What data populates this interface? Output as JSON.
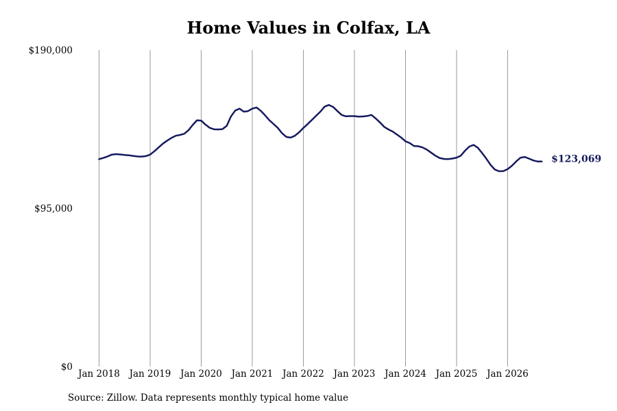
{
  "chart_data": {
    "type": "line",
    "title": "Home Values in Colfax, LA",
    "source_note": "Source: Zillow. Data represents monthly typical home value",
    "ylim": [
      0,
      190000
    ],
    "y_ticks": [
      {
        "value": 0,
        "label": "$0"
      },
      {
        "value": 95000,
        "label": "$95,000"
      },
      {
        "value": 190000,
        "label": "$190,000"
      }
    ],
    "x_ticks": [
      "Jan 2018",
      "Jan 2019",
      "Jan 2020",
      "Jan 2021",
      "Jan 2022",
      "Jan 2023",
      "Jan 2024",
      "Jan 2025",
      "Jan 2026"
    ],
    "grid": {
      "vertical": true,
      "horizontal": false
    },
    "line_color": "#151a5e",
    "end_label": "$123,069",
    "series": [
      {
        "points": [
          [
            "2018-01",
            124500
          ],
          [
            "2018-02",
            125200
          ],
          [
            "2018-03",
            126100
          ],
          [
            "2018-04",
            127200
          ],
          [
            "2018-05",
            127500
          ],
          [
            "2018-06",
            127300
          ],
          [
            "2018-07",
            127000
          ],
          [
            "2018-08",
            126800
          ],
          [
            "2018-09",
            126400
          ],
          [
            "2018-10",
            126100
          ],
          [
            "2018-11",
            126000
          ],
          [
            "2018-12",
            126300
          ],
          [
            "2019-01",
            127200
          ],
          [
            "2019-02",
            129200
          ],
          [
            "2019-03",
            131500
          ],
          [
            "2019-04",
            133800
          ],
          [
            "2019-05",
            135600
          ],
          [
            "2019-06",
            137200
          ],
          [
            "2019-07",
            138500
          ],
          [
            "2019-08",
            139000
          ],
          [
            "2019-09",
            139700
          ],
          [
            "2019-10",
            141800
          ],
          [
            "2019-11",
            145000
          ],
          [
            "2019-12",
            147800
          ],
          [
            "2020-01",
            147600
          ],
          [
            "2020-02",
            145200
          ],
          [
            "2020-03",
            143300
          ],
          [
            "2020-04",
            142400
          ],
          [
            "2020-05",
            142300
          ],
          [
            "2020-06",
            142500
          ],
          [
            "2020-07",
            144500
          ],
          [
            "2020-08",
            150200
          ],
          [
            "2020-09",
            153700
          ],
          [
            "2020-10",
            154800
          ],
          [
            "2020-11",
            153000
          ],
          [
            "2020-12",
            153300
          ],
          [
            "2021-01",
            154800
          ],
          [
            "2021-02",
            155500
          ],
          [
            "2021-03",
            153500
          ],
          [
            "2021-04",
            150800
          ],
          [
            "2021-05",
            147900
          ],
          [
            "2021-06",
            145600
          ],
          [
            "2021-07",
            143200
          ],
          [
            "2021-08",
            140000
          ],
          [
            "2021-09",
            137800
          ],
          [
            "2021-10",
            137400
          ],
          [
            "2021-11",
            138500
          ],
          [
            "2021-12",
            140600
          ],
          [
            "2022-01",
            143200
          ],
          [
            "2022-02",
            145500
          ],
          [
            "2022-03",
            148000
          ],
          [
            "2022-04",
            150500
          ],
          [
            "2022-05",
            153000
          ],
          [
            "2022-06",
            156000
          ],
          [
            "2022-07",
            157000
          ],
          [
            "2022-08",
            155800
          ],
          [
            "2022-09",
            153300
          ],
          [
            "2022-10",
            151000
          ],
          [
            "2022-11",
            150200
          ],
          [
            "2022-12",
            150300
          ],
          [
            "2023-01",
            150300
          ],
          [
            "2023-02",
            150000
          ],
          [
            "2023-03",
            150100
          ],
          [
            "2023-04",
            150400
          ],
          [
            "2023-05",
            151000
          ],
          [
            "2023-06",
            148900
          ],
          [
            "2023-07",
            146500
          ],
          [
            "2023-08",
            143800
          ],
          [
            "2023-09",
            142300
          ],
          [
            "2023-10",
            141000
          ],
          [
            "2023-11",
            139200
          ],
          [
            "2023-12",
            137400
          ],
          [
            "2024-01",
            135200
          ],
          [
            "2024-02",
            134100
          ],
          [
            "2024-03",
            132400
          ],
          [
            "2024-04",
            132200
          ],
          [
            "2024-05",
            131500
          ],
          [
            "2024-06",
            130200
          ],
          [
            "2024-07",
            128400
          ],
          [
            "2024-08",
            126600
          ],
          [
            "2024-09",
            125200
          ],
          [
            "2024-10",
            124600
          ],
          [
            "2024-11",
            124500
          ],
          [
            "2024-12",
            124800
          ],
          [
            "2025-01",
            125400
          ],
          [
            "2025-02",
            126600
          ],
          [
            "2025-03",
            129600
          ],
          [
            "2025-04",
            132000
          ],
          [
            "2025-05",
            133000
          ],
          [
            "2025-06",
            131300
          ],
          [
            "2025-07",
            128100
          ],
          [
            "2025-08",
            124700
          ],
          [
            "2025-09",
            121000
          ],
          [
            "2025-10",
            118200
          ],
          [
            "2025-11",
            117200
          ],
          [
            "2025-12",
            117300
          ],
          [
            "2026-01",
            118500
          ],
          [
            "2026-02",
            120500
          ],
          [
            "2026-03",
            123100
          ],
          [
            "2026-04",
            125300
          ],
          [
            "2026-05",
            125800
          ],
          [
            "2026-06",
            124800
          ],
          [
            "2026-07",
            123700
          ],
          [
            "2026-08",
            123100
          ],
          [
            "2026-09",
            123069
          ]
        ]
      }
    ]
  }
}
